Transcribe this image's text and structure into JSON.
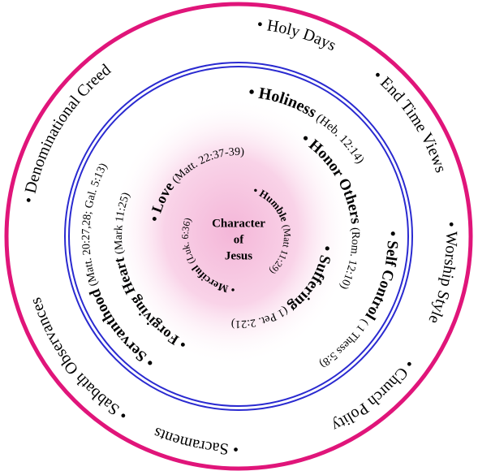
{
  "outer_ring": [
    "• Holy Days",
    "• End Time Views",
    "• Worship Style",
    "• Church Polity",
    "• Sacraments",
    "• Sabbath Observances",
    "• Denominational Creed"
  ],
  "inner": [
    {
      "label": "• Holiness",
      "ref": "(Heb. 12:14)"
    },
    {
      "label": "• Honor Others",
      "ref": "(Rom. 12:10)"
    },
    {
      "label": "• Self Control",
      "ref": "( 1 Thess 5:8)"
    },
    {
      "label": "• Suffering",
      "ref": "(1 Pet. 2:21)"
    },
    {
      "label": "• Humble",
      "ref": "(Matt 11:29)"
    },
    {
      "label": "• Merciful",
      "ref": "(Luk. 6:36)"
    },
    {
      "label": "• Love",
      "ref": "(Matt. 22:37-39)"
    },
    {
      "label": "• Forgiving Heart",
      "ref": "(Mark 11:25)"
    },
    {
      "label": "• Servanthood",
      "ref": "(Matt. 20:27,28; Gal. 5:13)"
    }
  ],
  "center": [
    "Character",
    "of",
    "Jesus"
  ]
}
